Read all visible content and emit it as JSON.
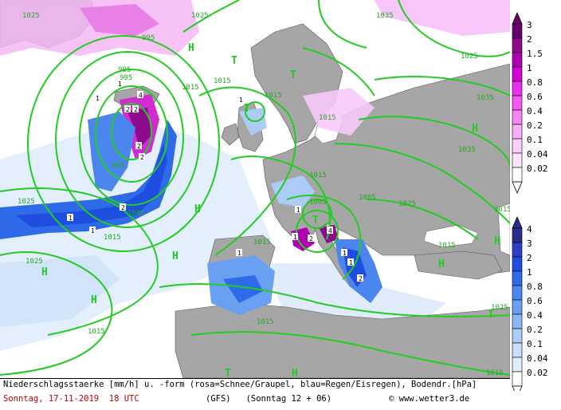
{
  "map": {
    "pressure_labels": [
      "1025",
      "995",
      "1025",
      "985",
      "985",
      "1005",
      "1015",
      "1015",
      "1015",
      "1015",
      "1015",
      "1015",
      "1005",
      "1035",
      "1035",
      "1035",
      "1025",
      "1025",
      "1015",
      "1015",
      "1015",
      "1025",
      "1015",
      "1025",
      "1005",
      "1015",
      "1015",
      "1025",
      "995"
    ],
    "high_labels": [
      "H",
      "H",
      "H",
      "H",
      "H",
      "H",
      "H",
      "H",
      "H"
    ],
    "low_labels": [
      "T",
      "T",
      "T",
      "T",
      "T",
      "T"
    ],
    "precip_labels": [
      "1",
      "1",
      "2",
      "2",
      "2",
      "4",
      "2",
      "1",
      "2",
      "1",
      "1",
      "2",
      "4",
      "1",
      "1",
      "1",
      "2",
      "1",
      "1"
    ]
  },
  "legend_snow": {
    "labels": [
      "3",
      "2",
      "1.5",
      "1",
      "0.8",
      "0.6",
      "0.4",
      "0.2",
      "0.1",
      "0.04",
      "0.02"
    ],
    "colors": [
      "#6a006a",
      "#8d0a8d",
      "#b000b0",
      "#d400d4",
      "#ea30ea",
      "#f35af3",
      "#f684f6",
      "#f9aef9",
      "#fbcdfb",
      "#fde6fd",
      "#ffffff"
    ]
  },
  "legend_rain": {
    "labels": [
      "4",
      "3",
      "2",
      "1",
      "0.8",
      "0.6",
      "0.4",
      "0.2",
      "0.1",
      "0.04",
      "0.02"
    ],
    "colors": [
      "#2b2b8c",
      "#2e3fc4",
      "#1e4ee0",
      "#2f6ae8",
      "#4a86ee",
      "#6aa0f1",
      "#8bb8f4",
      "#acccf7",
      "#c8defa",
      "#deeefc",
      "#ffffff"
    ]
  },
  "footer": {
    "line1": "Niederschlagsstaerke [mm/h] u. -form (rosa=Schnee/Graupel, blau=Regen/Eisregen), Bodendr.[hPa]",
    "date": "Sonntag, 17-11-2019  18 UTC",
    "model": "(GFS)   (Sonntag 12 + 06)",
    "credit": "© www.wetter3.de"
  },
  "colors": {
    "sea": "#ffffff",
    "land": "#a6a6a6",
    "isobar": "#22cc22",
    "snow": "#e060e0",
    "rain": "#2f6ae8"
  }
}
